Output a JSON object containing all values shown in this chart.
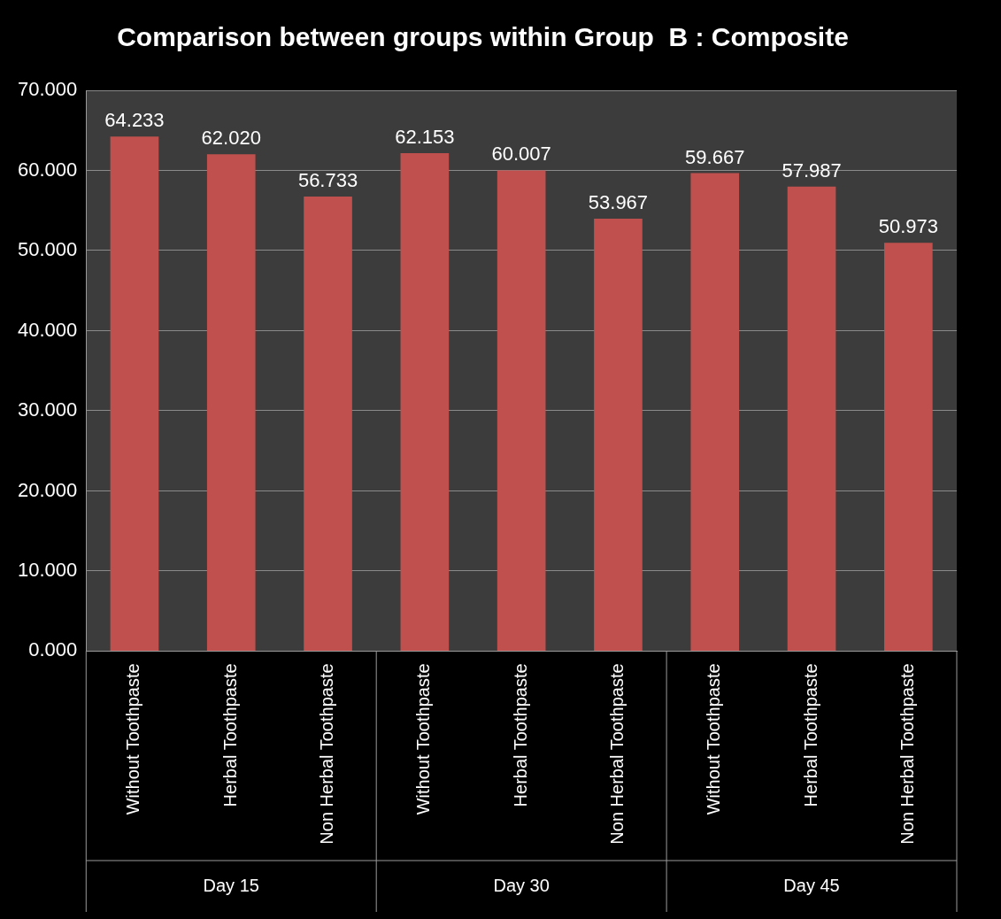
{
  "chart_data": {
    "type": "bar",
    "title": "Comparison between groups within Group  B : Composite",
    "categories": [
      "Without Toothpaste",
      "Herbal Toothpaste",
      "Non Herbal Toothpaste",
      "Without Toothpaste",
      "Herbal Toothpaste",
      "Non Herbal Toothpaste",
      "Without Toothpaste",
      "Herbal Toothpaste",
      "Non Herbal Toothpaste"
    ],
    "values": [
      64.233,
      62.02,
      56.733,
      62.153,
      60.007,
      53.967,
      59.667,
      57.987,
      50.973
    ],
    "value_labels": [
      "64.233",
      "62.020",
      "56.733",
      "62.153",
      "60.007",
      "53.967",
      "59.667",
      "57.987",
      "50.973"
    ],
    "color": "#c0504d",
    "ylim": [
      0,
      70
    ],
    "yticks": [
      {
        "value": 0,
        "label": "0.000"
      },
      {
        "value": 10,
        "label": "10.000"
      },
      {
        "value": 20,
        "label": "20.000"
      },
      {
        "value": 30,
        "label": "30.000"
      },
      {
        "value": 40,
        "label": "40.000"
      },
      {
        "value": 50,
        "label": "50.000"
      },
      {
        "value": 60,
        "label": "60.000"
      },
      {
        "value": 70,
        "label": "70.000"
      }
    ],
    "grid": "y",
    "legend": false,
    "annotations": [
      "Day 15",
      "Day 30",
      "Day 45"
    ]
  }
}
